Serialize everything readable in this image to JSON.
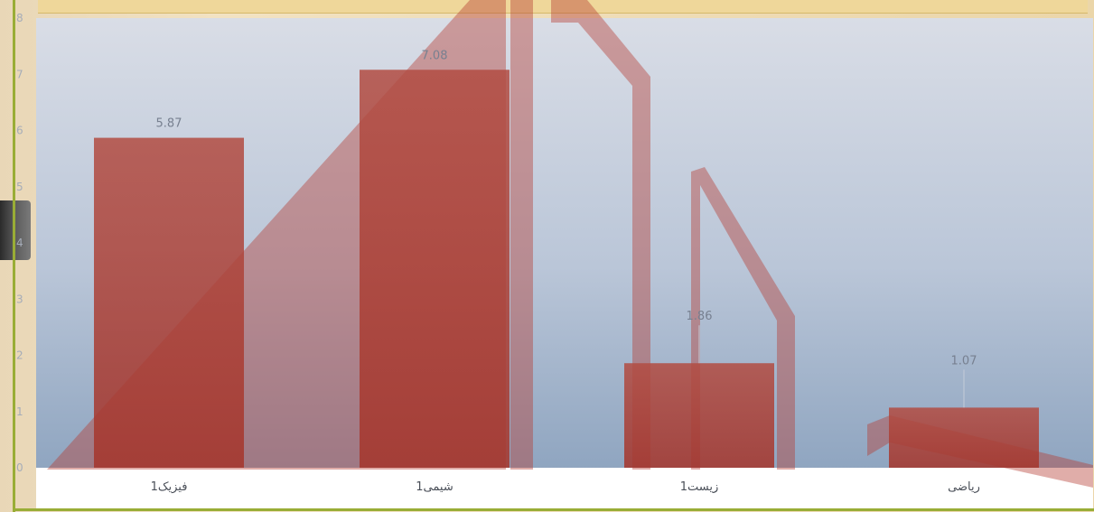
{
  "chart_data": {
    "type": "bar",
    "categories": [
      "فیزیک1",
      "شیمی1",
      "زیست1",
      "ریاضی"
    ],
    "values": [
      5.87,
      7.08,
      1.86,
      1.07
    ],
    "data_labels": [
      "5.87",
      "7.08",
      "1.86",
      "1.07"
    ],
    "y_ticks": [
      "0",
      "1",
      "2",
      "3",
      "4",
      "5",
      "6",
      "7",
      "8"
    ],
    "ylim": [
      0,
      8
    ],
    "grid": false,
    "title": "",
    "xlabel": "",
    "ylabel": "",
    "colors": {
      "bar": "#a5342a",
      "plot_top": "#d9dde6",
      "plot_mid": "#b8c4d6",
      "plot_bottom": "#93a8c2",
      "frame": "#99ad36"
    }
  }
}
